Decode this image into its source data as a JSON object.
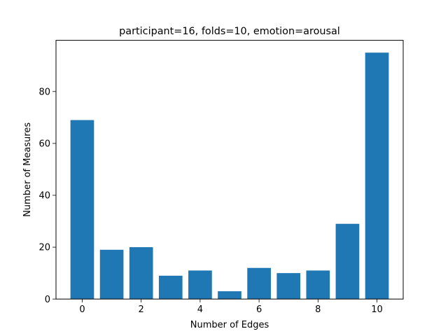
{
  "chart_data": {
    "type": "bar",
    "title": "participant=16, folds=10, emotion=arousal",
    "xlabel": "Number of Edges",
    "ylabel": "Number of Measures",
    "categories": [
      0,
      1,
      2,
      3,
      4,
      5,
      6,
      7,
      8,
      9,
      10
    ],
    "values": [
      69,
      19,
      20,
      9,
      11,
      3,
      12,
      10,
      11,
      29,
      95
    ],
    "xlim": [
      -0.89,
      10.89
    ],
    "ylim": [
      0,
      99.75
    ],
    "xticks": [
      0,
      2,
      4,
      6,
      8,
      10
    ],
    "yticks": [
      0,
      20,
      40,
      60,
      80
    ],
    "bar_color": "#1f77b4",
    "grid": false,
    "legend": "none"
  }
}
